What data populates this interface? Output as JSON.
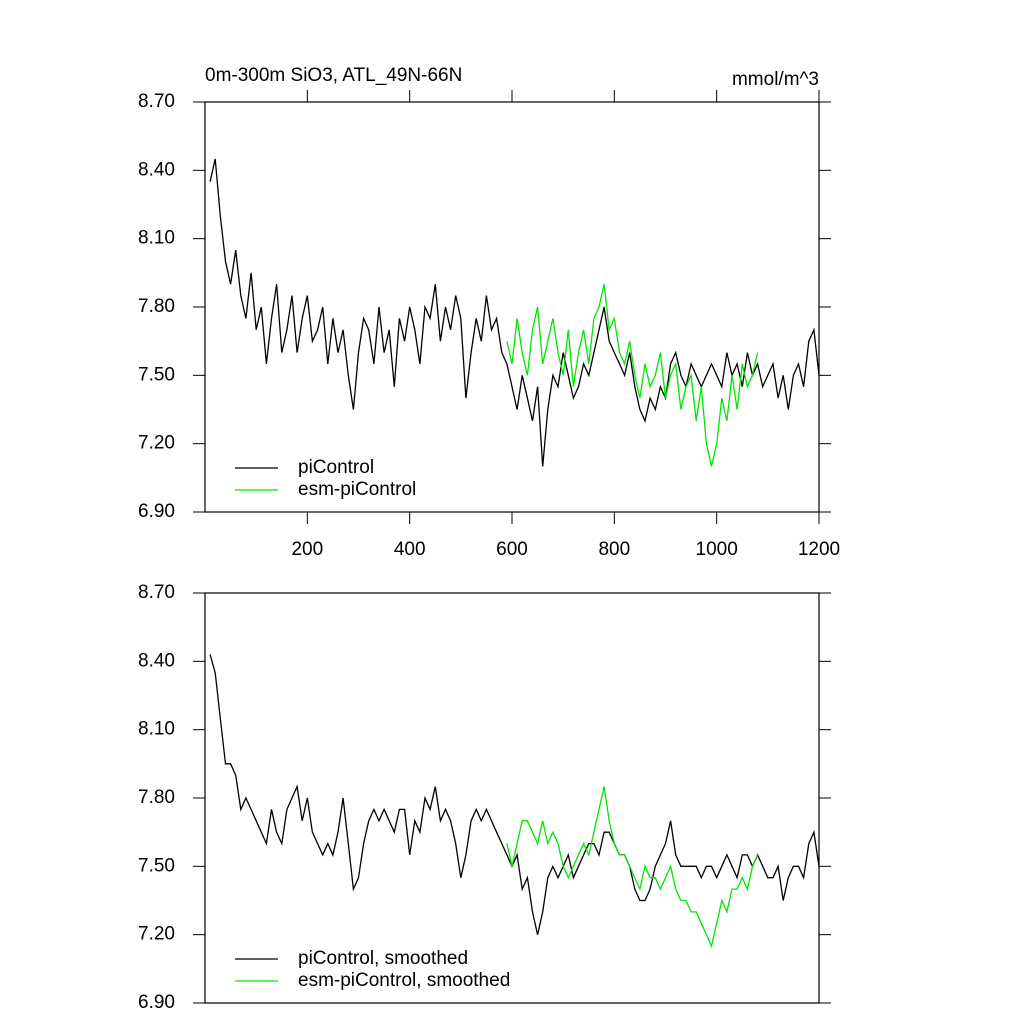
{
  "chart_data": [
    {
      "type": "line",
      "title": "0m-300m SiO3, ATL_49N-66N",
      "units": "mmol/m^3",
      "xlim": [
        0,
        1200
      ],
      "xticks": [
        200,
        400,
        600,
        800,
        1000,
        1200
      ],
      "ylim": [
        6.9,
        8.7
      ],
      "yticks": [
        {
          "value": 6.9,
          "label": "6.90"
        },
        {
          "value": 7.2,
          "label": "7.20"
        },
        {
          "value": 7.5,
          "label": "7.50"
        },
        {
          "value": 7.8,
          "label": "7.80"
        },
        {
          "value": 8.1,
          "label": "8.10"
        },
        {
          "value": 8.4,
          "label": "8.40"
        },
        {
          "value": 8.7,
          "label": "8.70"
        }
      ],
      "legend": "lower left",
      "series": [
        {
          "name": "piControl",
          "color": "#000000",
          "x": [
            10,
            20,
            30,
            40,
            50,
            60,
            70,
            80,
            90,
            100,
            110,
            120,
            130,
            140,
            150,
            160,
            170,
            180,
            190,
            200,
            210,
            220,
            230,
            240,
            250,
            260,
            270,
            280,
            290,
            300,
            310,
            320,
            330,
            340,
            350,
            360,
            370,
            380,
            390,
            400,
            410,
            420,
            430,
            440,
            450,
            460,
            470,
            480,
            490,
            500,
            510,
            520,
            530,
            540,
            550,
            560,
            570,
            580,
            590,
            600,
            610,
            620,
            630,
            640,
            650,
            660,
            670,
            680,
            690,
            700,
            710,
            720,
            730,
            740,
            750,
            760,
            770,
            780,
            790,
            800,
            810,
            820,
            830,
            840,
            850,
            860,
            870,
            880,
            890,
            900,
            910,
            920,
            930,
            940,
            950,
            960,
            970,
            980,
            990,
            1000,
            1010,
            1020,
            1030,
            1040,
            1050,
            1060,
            1070,
            1080,
            1090,
            1100,
            1110,
            1120,
            1130,
            1140,
            1150,
            1160,
            1170,
            1180,
            1190,
            1200
          ],
          "values": [
            8.35,
            8.45,
            8.2,
            8.0,
            7.9,
            8.05,
            7.85,
            7.75,
            7.95,
            7.7,
            7.8,
            7.55,
            7.75,
            7.9,
            7.6,
            7.7,
            7.85,
            7.6,
            7.75,
            7.85,
            7.65,
            7.7,
            7.8,
            7.55,
            7.75,
            7.6,
            7.7,
            7.5,
            7.35,
            7.6,
            7.75,
            7.7,
            7.55,
            7.8,
            7.6,
            7.7,
            7.45,
            7.75,
            7.65,
            7.8,
            7.7,
            7.55,
            7.8,
            7.75,
            7.9,
            7.65,
            7.8,
            7.7,
            7.85,
            7.75,
            7.4,
            7.6,
            7.75,
            7.65,
            7.85,
            7.7,
            7.75,
            7.6,
            7.55,
            7.45,
            7.35,
            7.5,
            7.4,
            7.3,
            7.45,
            7.1,
            7.35,
            7.5,
            7.45,
            7.6,
            7.5,
            7.4,
            7.45,
            7.55,
            7.5,
            7.6,
            7.7,
            7.8,
            7.65,
            7.6,
            7.55,
            7.5,
            7.6,
            7.45,
            7.35,
            7.3,
            7.4,
            7.35,
            7.45,
            7.4,
            7.55,
            7.6,
            7.5,
            7.45,
            7.55,
            7.5,
            7.45,
            7.5,
            7.55,
            7.5,
            7.45,
            7.6,
            7.5,
            7.55,
            7.45,
            7.6,
            7.5,
            7.55,
            7.45,
            7.5,
            7.55,
            7.4,
            7.5,
            7.35,
            7.5,
            7.55,
            7.45,
            7.65,
            7.7,
            7.5
          ]
        },
        {
          "name": "esm-piControl",
          "color": "#00e600",
          "x": [
            590,
            600,
            610,
            620,
            630,
            640,
            650,
            660,
            670,
            680,
            690,
            700,
            710,
            720,
            730,
            740,
            750,
            760,
            770,
            780,
            790,
            800,
            810,
            820,
            830,
            840,
            850,
            860,
            870,
            880,
            890,
            900,
            910,
            920,
            930,
            940,
            950,
            960,
            970,
            980,
            990,
            1000,
            1010,
            1020,
            1030,
            1040,
            1050,
            1060,
            1070,
            1080
          ],
          "values": [
            7.65,
            7.55,
            7.75,
            7.6,
            7.5,
            7.7,
            7.8,
            7.55,
            7.65,
            7.75,
            7.6,
            7.5,
            7.7,
            7.45,
            7.6,
            7.7,
            7.55,
            7.75,
            7.8,
            7.9,
            7.7,
            7.75,
            7.6,
            7.55,
            7.65,
            7.5,
            7.4,
            7.55,
            7.45,
            7.5,
            7.6,
            7.4,
            7.5,
            7.55,
            7.35,
            7.45,
            7.5,
            7.3,
            7.45,
            7.2,
            7.1,
            7.2,
            7.4,
            7.3,
            7.5,
            7.35,
            7.55,
            7.45,
            7.5,
            7.6
          ]
        }
      ]
    },
    {
      "type": "line",
      "xlim": [
        0,
        1200
      ],
      "ylim": [
        6.9,
        8.7
      ],
      "yticks": [
        {
          "value": 6.9,
          "label": "6.90"
        },
        {
          "value": 7.2,
          "label": "7.20"
        },
        {
          "value": 7.5,
          "label": "7.50"
        },
        {
          "value": 7.8,
          "label": "7.80"
        },
        {
          "value": 8.1,
          "label": "8.10"
        },
        {
          "value": 8.4,
          "label": "8.40"
        },
        {
          "value": 8.7,
          "label": "8.70"
        }
      ],
      "legend": "lower left",
      "series": [
        {
          "name": "piControl, smoothed",
          "color": "#000000",
          "x": [
            10,
            20,
            30,
            40,
            50,
            60,
            70,
            80,
            90,
            100,
            110,
            120,
            130,
            140,
            150,
            160,
            170,
            180,
            190,
            200,
            210,
            220,
            230,
            240,
            250,
            260,
            270,
            280,
            290,
            300,
            310,
            320,
            330,
            340,
            350,
            360,
            370,
            380,
            390,
            400,
            410,
            420,
            430,
            440,
            450,
            460,
            470,
            480,
            490,
            500,
            510,
            520,
            530,
            540,
            550,
            560,
            570,
            580,
            590,
            600,
            610,
            620,
            630,
            640,
            650,
            660,
            670,
            680,
            690,
            700,
            710,
            720,
            730,
            740,
            750,
            760,
            770,
            780,
            790,
            800,
            810,
            820,
            830,
            840,
            850,
            860,
            870,
            880,
            890,
            900,
            910,
            920,
            930,
            940,
            950,
            960,
            970,
            980,
            990,
            1000,
            1010,
            1020,
            1030,
            1040,
            1050,
            1060,
            1070,
            1080,
            1090,
            1100,
            1110,
            1120,
            1130,
            1140,
            1150,
            1160,
            1170,
            1180,
            1190,
            1200
          ],
          "values": [
            8.43,
            8.35,
            8.15,
            7.95,
            7.95,
            7.9,
            7.75,
            7.8,
            7.75,
            7.7,
            7.65,
            7.6,
            7.75,
            7.65,
            7.6,
            7.75,
            7.8,
            7.85,
            7.7,
            7.8,
            7.65,
            7.6,
            7.55,
            7.6,
            7.55,
            7.65,
            7.8,
            7.6,
            7.4,
            7.45,
            7.6,
            7.7,
            7.75,
            7.7,
            7.75,
            7.7,
            7.65,
            7.75,
            7.75,
            7.55,
            7.7,
            7.65,
            7.8,
            7.75,
            7.85,
            7.7,
            7.75,
            7.7,
            7.6,
            7.45,
            7.55,
            7.7,
            7.75,
            7.7,
            7.75,
            7.7,
            7.65,
            7.6,
            7.55,
            7.5,
            7.55,
            7.4,
            7.45,
            7.3,
            7.2,
            7.3,
            7.45,
            7.5,
            7.45,
            7.5,
            7.55,
            7.45,
            7.5,
            7.55,
            7.6,
            7.6,
            7.55,
            7.65,
            7.65,
            7.6,
            7.55,
            7.55,
            7.5,
            7.4,
            7.35,
            7.35,
            7.4,
            7.5,
            7.55,
            7.6,
            7.7,
            7.55,
            7.5,
            7.5,
            7.5,
            7.5,
            7.45,
            7.5,
            7.5,
            7.45,
            7.5,
            7.55,
            7.5,
            7.45,
            7.55,
            7.55,
            7.5,
            7.55,
            7.5,
            7.45,
            7.45,
            7.5,
            7.35,
            7.45,
            7.5,
            7.5,
            7.45,
            7.6,
            7.65,
            7.5
          ]
        },
        {
          "name": "esm-piControl, smoothed",
          "color": "#00e600",
          "x": [
            590,
            600,
            610,
            620,
            630,
            640,
            650,
            660,
            670,
            680,
            690,
            700,
            710,
            720,
            730,
            740,
            750,
            760,
            770,
            780,
            790,
            800,
            810,
            820,
            830,
            840,
            850,
            860,
            870,
            880,
            890,
            900,
            910,
            920,
            930,
            940,
            950,
            960,
            970,
            980,
            990,
            1000,
            1010,
            1020,
            1030,
            1040,
            1050,
            1060,
            1070,
            1080
          ],
          "values": [
            7.6,
            7.5,
            7.6,
            7.7,
            7.7,
            7.65,
            7.6,
            7.7,
            7.6,
            7.65,
            7.6,
            7.5,
            7.45,
            7.5,
            7.55,
            7.6,
            7.55,
            7.65,
            7.75,
            7.85,
            7.7,
            7.6,
            7.55,
            7.55,
            7.5,
            7.45,
            7.4,
            7.5,
            7.45,
            7.45,
            7.4,
            7.45,
            7.5,
            7.4,
            7.35,
            7.35,
            7.3,
            7.3,
            7.25,
            7.2,
            7.15,
            7.25,
            7.35,
            7.3,
            7.4,
            7.4,
            7.45,
            7.4,
            7.5,
            7.55
          ]
        }
      ]
    }
  ]
}
